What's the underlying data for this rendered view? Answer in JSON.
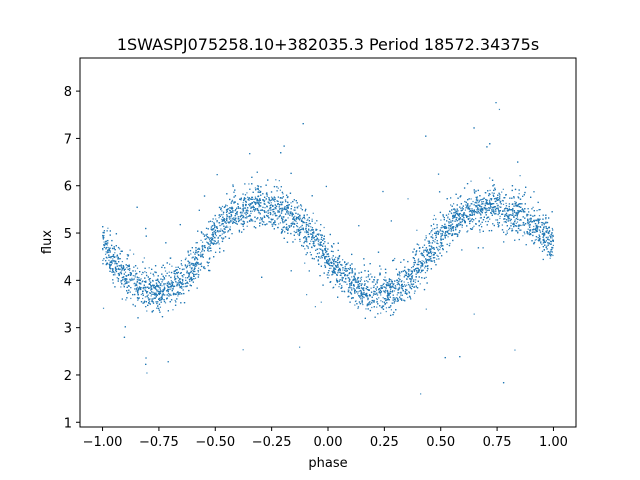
{
  "chart_data": {
    "type": "scatter",
    "title": "1SWASPJ075258.10+382035.3 Period 18572.34375s",
    "xlabel": "phase",
    "ylabel": "flux",
    "xlim": [
      -1.1,
      1.1
    ],
    "ylim": [
      0.9,
      8.7
    ],
    "xticks": [
      -1.0,
      -0.75,
      -0.5,
      -0.25,
      0.0,
      0.25,
      0.5,
      0.75,
      1.0
    ],
    "xtick_labels": [
      "−1.00",
      "−0.75",
      "−0.50",
      "−0.25",
      "0.00",
      "0.25",
      "0.50",
      "0.75",
      "1.00"
    ],
    "yticks": [
      1,
      2,
      3,
      4,
      5,
      6,
      7,
      8
    ],
    "ytick_labels": [
      "1",
      "2",
      "3",
      "4",
      "5",
      "6",
      "7",
      "8"
    ],
    "grid": false,
    "legend": "none",
    "marker_color": "#1f77b4",
    "series": [
      {
        "x": [
          -1.0,
          -0.95,
          -0.9,
          -0.85,
          -0.8,
          -0.75,
          -0.7,
          -0.65,
          -0.6,
          -0.55,
          -0.5,
          -0.45,
          -0.4,
          -0.35,
          -0.3,
          -0.25,
          -0.2,
          -0.15,
          -0.1,
          -0.05,
          0.0,
          0.05,
          0.1,
          0.15,
          0.2,
          0.25,
          0.3,
          0.35,
          0.4,
          0.45,
          0.5,
          0.55,
          0.6,
          0.65,
          0.7,
          0.75,
          0.8,
          0.85,
          0.9,
          0.95,
          1.0
        ],
        "y": [
          4.8,
          4.4,
          4.1,
          3.9,
          3.8,
          3.8,
          3.85,
          4.0,
          4.3,
          4.7,
          5.0,
          5.3,
          5.45,
          5.55,
          5.6,
          5.55,
          5.45,
          5.3,
          5.1,
          4.8,
          4.5,
          4.15,
          3.95,
          3.8,
          3.75,
          3.75,
          3.8,
          3.95,
          4.25,
          4.6,
          4.95,
          5.2,
          5.4,
          5.5,
          5.55,
          5.55,
          5.45,
          5.35,
          5.2,
          5.0,
          4.8
        ]
      }
    ]
  }
}
